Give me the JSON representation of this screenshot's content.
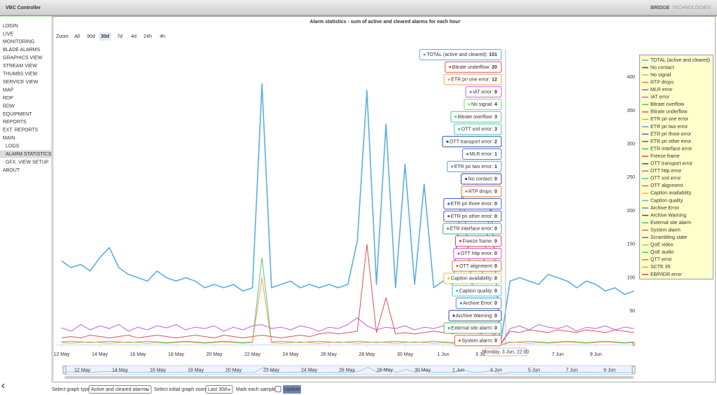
{
  "header": {
    "app_title": "VBC Controller",
    "brand": {
      "first": "BRIDGE",
      "second": "TECHNOLOGIES"
    }
  },
  "nav": {
    "items": [
      {
        "label": "LOGIN"
      },
      {
        "label": "LIVE"
      },
      {
        "label": "MONITORING"
      },
      {
        "label": "BLADE ALARMS"
      },
      {
        "label": "GRAPHICS VIEW"
      },
      {
        "label": "STREAM VIEW"
      },
      {
        "label": "THUMBS VIEW"
      },
      {
        "label": "SERVICE VIEW"
      },
      {
        "label": "MAP"
      },
      {
        "label": "RDP"
      },
      {
        "label": "RDW"
      },
      {
        "label": "EQUIPMENT"
      },
      {
        "label": "REPORTS"
      },
      {
        "label": "EXT. REPORTS"
      },
      {
        "label": "MAIN",
        "children": [
          {
            "label": "LOGS"
          },
          {
            "label": "ALARM STATISTICS",
            "selected": true
          },
          {
            "label": "GFX. VIEW SETUP"
          }
        ]
      },
      {
        "label": "ABOUT"
      }
    ]
  },
  "zoom": {
    "label": "Zoom",
    "buttons": [
      {
        "label": "All"
      },
      {
        "label": "90d",
        "disabled": true
      },
      {
        "label": "30d",
        "selected": true
      },
      {
        "label": "7d"
      },
      {
        "label": "4d"
      },
      {
        "label": "24h"
      },
      {
        "label": "4h",
        "disabled": true
      }
    ]
  },
  "chart_data": {
    "type": "line",
    "title": "Alarm statistics - sum of active and cleared alarms for each hour",
    "categories": [
      "12 May",
      null,
      null,
      null,
      "14 May",
      null,
      null,
      null,
      "16 May",
      null,
      null,
      null,
      "18 May",
      null,
      null,
      null,
      "20 May",
      null,
      null,
      null,
      "22 May",
      null,
      null,
      null,
      "24 May",
      null,
      null,
      null,
      "26 May",
      null,
      null,
      null,
      "28 May",
      null,
      null,
      null,
      "30 May",
      null,
      null,
      null,
      "1 Jun",
      null,
      null,
      null,
      "3 Jun",
      null,
      null,
      null,
      "5 Jun",
      null,
      null,
      null,
      "7 Jun",
      null,
      null,
      null,
      "9 Jun",
      null,
      null,
      null,
      null
    ],
    "ylim": [
      0,
      440
    ],
    "yticks": [
      0,
      50,
      100,
      150,
      200,
      250,
      300,
      350,
      400
    ],
    "grid": false,
    "series": [
      {
        "name": "TOTAL (active and cleared)",
        "color": "#5aaee6",
        "values": [
          125,
          115,
          120,
          110,
          130,
          145,
          115,
          105,
          100,
          95,
          110,
          100,
          95,
          100,
          95,
          85,
          90,
          85,
          90,
          80,
          85,
          390,
          85,
          90,
          95,
          85,
          90,
          85,
          90,
          85,
          90,
          155,
          380,
          90,
          330,
          85,
          270,
          90,
          240,
          85,
          95,
          90,
          230,
          90,
          95,
          210,
          0,
          95,
          100,
          95,
          90,
          105,
          100,
          95,
          85,
          95,
          90,
          80,
          85,
          75,
          80
        ]
      },
      {
        "name": "Bitrate underflow",
        "color": "#e05050",
        "values": [
          10,
          12,
          10,
          14,
          12,
          10,
          12,
          14,
          10,
          12,
          14,
          12,
          10,
          12,
          14,
          12,
          10,
          14,
          12,
          10,
          12,
          14,
          12,
          10,
          12,
          14,
          12,
          16,
          18,
          16,
          18,
          20,
          150,
          18,
          70,
          16,
          18,
          16,
          18,
          20,
          18,
          16,
          20,
          18,
          16,
          20,
          0,
          20,
          18,
          22,
          20,
          18,
          22,
          20,
          18,
          22,
          20,
          18,
          22,
          20,
          18
        ]
      },
      {
        "name": "ETR pri one error",
        "color": "#f0a050",
        "values": [
          3,
          2,
          3,
          4,
          3,
          2,
          3,
          4,
          3,
          2,
          3,
          2,
          3,
          4,
          3,
          2,
          3,
          4,
          3,
          2,
          3,
          100,
          3,
          2,
          3,
          4,
          3,
          2,
          3,
          4,
          3,
          2,
          3,
          4,
          3,
          2,
          3,
          4,
          3,
          2,
          3,
          2,
          3,
          4,
          3,
          2,
          0,
          4,
          3,
          2,
          3,
          2,
          3,
          4,
          3,
          2,
          3,
          4,
          3,
          2,
          3
        ]
      },
      {
        "name": "IAT error",
        "color": "#c060e0",
        "values": [
          25,
          20,
          30,
          22,
          28,
          24,
          30,
          20,
          26,
          22,
          28,
          25,
          30,
          22,
          26,
          24,
          28,
          20,
          26,
          22,
          28,
          30,
          24,
          26,
          22,
          28,
          25,
          20,
          26,
          24,
          30,
          40,
          28,
          22,
          26,
          24,
          28,
          22,
          26,
          24,
          28,
          22,
          30,
          24,
          26,
          28,
          0,
          24,
          28,
          22,
          30,
          26,
          24,
          28,
          20,
          26,
          24,
          28,
          22,
          26,
          24
        ]
      },
      {
        "name": "Bitrate overflow",
        "color": "#50c878",
        "values": [
          4,
          5,
          4,
          3,
          4,
          5,
          4,
          3,
          4,
          5,
          4,
          3,
          4,
          5,
          4,
          3,
          4,
          5,
          4,
          3,
          4,
          130,
          4,
          5,
          4,
          3,
          4,
          5,
          4,
          3,
          4,
          5,
          4,
          3,
          4,
          5,
          4,
          3,
          4,
          5,
          4,
          3,
          4,
          5,
          4,
          3,
          0,
          3,
          4,
          5,
          4,
          3,
          4,
          5,
          4,
          3,
          4,
          5,
          4,
          3,
          4
        ]
      }
    ]
  },
  "tooltip": {
    "header": "Monday, 3 Jun, 22:00",
    "items": [
      {
        "label": "TOTAL (active and cleared):",
        "value": 101,
        "color": "#5aaee6"
      },
      {
        "label": "Bitrate underflow:",
        "value": 20,
        "color": "#e05050"
      },
      {
        "label": "ETR pri one error:",
        "value": 12,
        "color": "#f0a050"
      },
      {
        "label": "IAT error:",
        "value": 9,
        "color": "#c060e0"
      },
      {
        "label": "No signal:",
        "value": 4,
        "color": "#86d86a"
      },
      {
        "label": "Bitrate overflow:",
        "value": 3,
        "color": "#50c878"
      },
      {
        "label": "OTT xml error:",
        "value": 3,
        "color": "#40c0c0"
      },
      {
        "label": "OTT transport error:",
        "value": 2,
        "color": "#2050a0"
      },
      {
        "label": "MLR error:",
        "value": 1,
        "color": "#6a70c8"
      },
      {
        "label": "ETR pri two error:",
        "value": 1,
        "color": "#50a0e0"
      },
      {
        "label": "No contact:",
        "value": 0,
        "color": "#3a3aa8"
      },
      {
        "label": "RTP drops:",
        "value": 0,
        "color": "#e07a3a"
      },
      {
        "label": "ETR pri three error:",
        "value": 0,
        "color": "#4060d0"
      },
      {
        "label": "ETR pri other error:",
        "value": 0,
        "color": "#6050b0"
      },
      {
        "label": "ETR interface error:",
        "value": 0,
        "color": "#40b080"
      },
      {
        "label": "Freeze frame:",
        "value": 0,
        "color": "#e04060"
      },
      {
        "label": "OTT http error:",
        "value": 0,
        "color": "#d050d0"
      },
      {
        "label": "OTT alignment:",
        "value": 0,
        "color": "#d07030"
      },
      {
        "label": "Caption availability:",
        "value": 0,
        "color": "#f0c030"
      },
      {
        "label": "Caption quality:",
        "value": 0,
        "color": "#40c0e0"
      },
      {
        "label": "Archive Error:",
        "value": 0,
        "color": "#6080d0"
      },
      {
        "label": "Archive Warning:",
        "value": 0,
        "color": "#404090"
      },
      {
        "label": "External site alarm:",
        "value": 0,
        "color": "#40c060"
      },
      {
        "label": "System alarm:",
        "value": 0,
        "color": "#e06040"
      }
    ]
  },
  "legend": {
    "items": [
      {
        "name": "TOTAL (active and cleared)",
        "color": "#5aaee6"
      },
      {
        "name": "No contact",
        "color": "#3a3aa8"
      },
      {
        "name": "No signal",
        "color": "#86d86a"
      },
      {
        "name": "RTP drops",
        "color": "#e07a3a"
      },
      {
        "name": "MLR error",
        "color": "#6a70c8"
      },
      {
        "name": "IAT error",
        "color": "#c060e0"
      },
      {
        "name": "Bitrate overflow",
        "color": "#50c878"
      },
      {
        "name": "Bitrate underflow",
        "color": "#e05050"
      },
      {
        "name": "ETR pri one error",
        "color": "#f0a050"
      },
      {
        "name": "ETR pri two error",
        "color": "#50a0e0"
      },
      {
        "name": "ETR pri three error",
        "color": "#4060d0"
      },
      {
        "name": "ETR pri other error",
        "color": "#6050b0"
      },
      {
        "name": "ETR interface error",
        "color": "#40b080"
      },
      {
        "name": "Freeze frame",
        "color": "#e04060"
      },
      {
        "name": "OTT transport error",
        "color": "#2050a0"
      },
      {
        "name": "OTT http error",
        "color": "#d050d0"
      },
      {
        "name": "OTT xml error",
        "color": "#40c0c0"
      },
      {
        "name": "OTT alignment",
        "color": "#d07030"
      },
      {
        "name": "Caption availability",
        "color": "#f0c030"
      },
      {
        "name": "Caption quality",
        "color": "#40c0e0"
      },
      {
        "name": "Archive Error",
        "color": "#6080d0"
      },
      {
        "name": "Archive Warning",
        "color": "#404090"
      },
      {
        "name": "External site alarm",
        "color": "#40c060"
      },
      {
        "name": "System alarm",
        "color": "#e06040"
      },
      {
        "name": "Scrambling state",
        "color": "#3070c0"
      },
      {
        "name": "QoE video",
        "color": "#a0d040"
      },
      {
        "name": "QoE audio",
        "color": "#40d040"
      },
      {
        "name": "QTT error",
        "color": "#e07030"
      },
      {
        "name": "SCTE 35",
        "color": "#e0a020"
      },
      {
        "name": "EBP/IDR error",
        "color": "#d04040"
      }
    ]
  },
  "controls": {
    "graph_type_label": "Select graph type",
    "graph_type_value": "Active and cleared alarms",
    "zoom_label": "Select initial graph zoom",
    "zoom_value": "Last 30d",
    "mark_label": "Mark each sample",
    "button": "Update"
  }
}
